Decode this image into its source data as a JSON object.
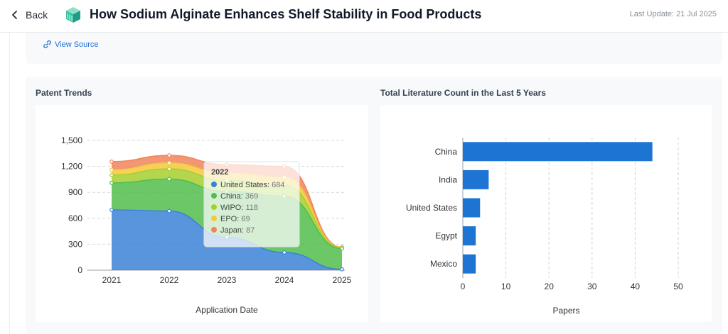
{
  "header": {
    "back_label": "Back",
    "title": "How Sodium Alginate Enhances Shelf Stability in Food Products",
    "last_update": "Last Update: 21 Jul 2025"
  },
  "source": {
    "view_source_label": "View Source"
  },
  "colors": {
    "united_states": "#3b82d6",
    "china": "#52bd4c",
    "wipo": "#a6cf2e",
    "epo": "#f3c93a",
    "japan": "#f0845a",
    "bar": "#1e74d2",
    "link": "#1e6fd9"
  },
  "chart_data": [
    {
      "type": "area",
      "stacked": true,
      "title": "Patent Trends",
      "xlabel": "Application Date",
      "ylabel": "",
      "categories": [
        "2021",
        "2022",
        "2023",
        "2024",
        "2025"
      ],
      "ylim": [
        0,
        1500
      ],
      "yticks": [
        "0",
        "300",
        "600",
        "900",
        "1,200",
        "1,500"
      ],
      "grid": true,
      "series": [
        {
          "name": "United States",
          "color": "#3b82d6",
          "values": [
            697,
            684,
            380,
            205,
            10
          ]
        },
        {
          "name": "China",
          "color": "#52bd4c",
          "values": [
            312,
            369,
            530,
            650,
            240
          ]
        },
        {
          "name": "WIPO",
          "color": "#a6cf2e",
          "values": [
            90,
            118,
            130,
            130,
            5
          ]
        },
        {
          "name": "EPO",
          "color": "#f3c93a",
          "values": [
            60,
            69,
            80,
            90,
            5
          ]
        },
        {
          "name": "Japan",
          "color": "#f0845a",
          "values": [
            96,
            87,
            100,
            125,
            5
          ]
        }
      ],
      "tooltip": {
        "title": "2022",
        "items": [
          {
            "label": "United States",
            "value": "684",
            "color": "#3b82d6"
          },
          {
            "label": "China",
            "value": "369",
            "color": "#52bd4c"
          },
          {
            "label": "WIPO",
            "value": "118",
            "color": "#a6cf2e"
          },
          {
            "label": "EPO",
            "value": "69",
            "color": "#f3c93a"
          },
          {
            "label": "Japan",
            "value": "87",
            "color": "#f0845a"
          }
        ]
      }
    },
    {
      "type": "bar",
      "orientation": "horizontal",
      "title": "Total Literature Count in the Last 5 Years",
      "xlabel": "Papers",
      "ylabel": "",
      "categories": [
        "China",
        "India",
        "United States",
        "Egypt",
        "Mexico"
      ],
      "values": [
        44,
        6,
        4,
        3,
        3
      ],
      "xlim": [
        0,
        50
      ],
      "xticks": [
        "0",
        "10",
        "20",
        "30",
        "40",
        "50"
      ],
      "grid": true,
      "color": "#1e74d2"
    }
  ]
}
